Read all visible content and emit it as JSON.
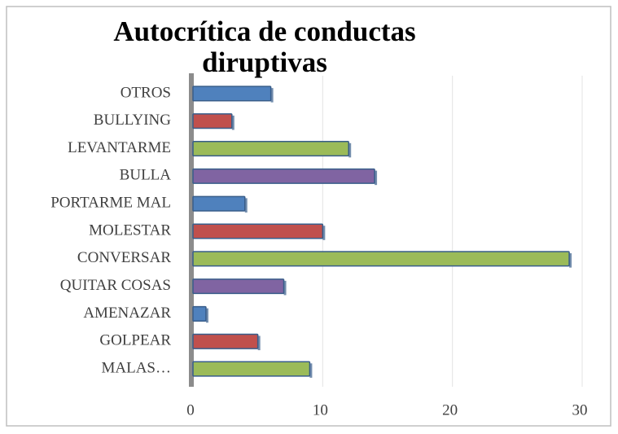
{
  "chart_data": {
    "type": "bar",
    "orientation": "horizontal",
    "title": "Autocrítica de conductas diruptivas",
    "categories": [
      "OTROS",
      "BULLYING",
      "LEVANTARME",
      "BULLA",
      "PORTARME MAL",
      "MOLESTAR",
      "CONVERSAR",
      "QUITAR COSAS",
      "AMENAZAR",
      "GOLPEAR",
      "MALAS…"
    ],
    "values": [
      6,
      3,
      12,
      14,
      4,
      10,
      29,
      7,
      1,
      5,
      9
    ],
    "colors": [
      "#4f81bd",
      "#c0504d",
      "#9bbb59",
      "#8064a2",
      "#4f81bd",
      "#c0504d",
      "#9bbb59",
      "#8064a2",
      "#4f81bd",
      "#c0504d",
      "#9bbb59"
    ],
    "xlim": [
      0,
      30
    ],
    "xticks": [
      0,
      10,
      20,
      30
    ],
    "grid": true
  }
}
